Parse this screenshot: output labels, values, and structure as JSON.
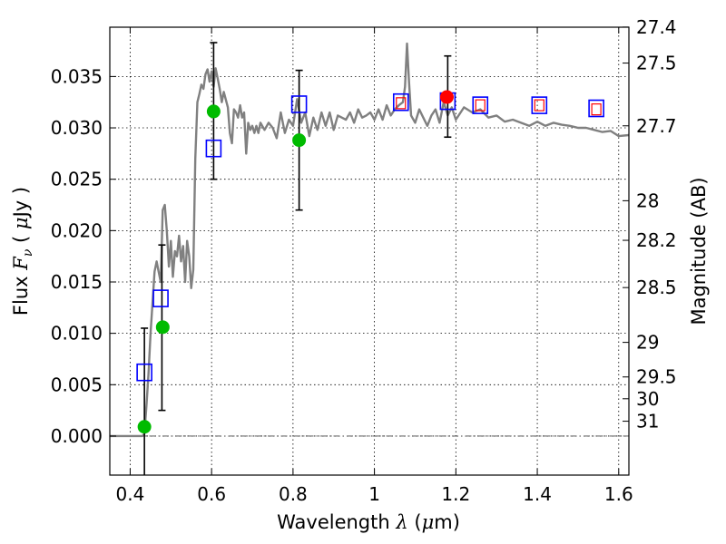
{
  "chart_data": {
    "type": "scatter",
    "xlabel": "Wavelength",
    "xlabel_symbol": "λ",
    "xlabel_unit_open": "(",
    "xlabel_unit_mu": "μ",
    "xlabel_unit_rest": "m)",
    "ylabel": "Flux",
    "ylabel_symbol": "F",
    "ylabel_sub": "ν",
    "ylabel_unit_open": "( ",
    "ylabel_unit_mu": "μ",
    "ylabel_unit_rest": "Jy )",
    "y2label": "Magnitude (AB)",
    "xlim": [
      0.35,
      1.625
    ],
    "ylim": [
      -0.0038,
      0.0398
    ],
    "grid": true,
    "x_ticks": [
      0.4,
      0.6,
      0.8,
      1.0,
      1.2,
      1.4,
      1.6
    ],
    "x_tick_labels": [
      "0.4",
      "0.6",
      "0.8",
      "1",
      "1.2",
      "1.4",
      "1.6"
    ],
    "y_ticks": [
      0.0,
      0.005,
      0.01,
      0.015,
      0.02,
      0.025,
      0.03,
      0.035
    ],
    "y_tick_labels": [
      "0.000",
      "0.005",
      "0.010",
      "0.015",
      "0.020",
      "0.025",
      "0.030",
      "0.035"
    ],
    "mag_ticks": [
      27.4,
      27.5,
      27.7,
      28,
      28.2,
      28.5,
      29,
      29.5,
      30,
      31
    ],
    "mag_tick_labels": [
      "27.4",
      "27.5",
      "27.7",
      "28",
      "28.2",
      "28.5",
      "29",
      "29.5",
      "30",
      "31"
    ],
    "zero_line_y": 0.0,
    "series": [
      {
        "name": "model spectrum",
        "kind": "line",
        "color": "#808080",
        "x": [
          0.35,
          0.43,
          0.435,
          0.44,
          0.445,
          0.45,
          0.455,
          0.46,
          0.465,
          0.47,
          0.475,
          0.48,
          0.485,
          0.49,
          0.495,
          0.5,
          0.505,
          0.51,
          0.515,
          0.52,
          0.525,
          0.53,
          0.535,
          0.54,
          0.545,
          0.55,
          0.555,
          0.56,
          0.565,
          0.57,
          0.575,
          0.58,
          0.585,
          0.59,
          0.595,
          0.6,
          0.605,
          0.61,
          0.615,
          0.62,
          0.625,
          0.63,
          0.64,
          0.645,
          0.65,
          0.655,
          0.66,
          0.665,
          0.67,
          0.675,
          0.68,
          0.685,
          0.69,
          0.695,
          0.7,
          0.705,
          0.71,
          0.715,
          0.72,
          0.73,
          0.74,
          0.75,
          0.76,
          0.77,
          0.78,
          0.79,
          0.8,
          0.81,
          0.82,
          0.83,
          0.84,
          0.85,
          0.86,
          0.87,
          0.88,
          0.89,
          0.9,
          0.91,
          0.92,
          0.93,
          0.94,
          0.95,
          0.96,
          0.97,
          0.98,
          0.99,
          1.0,
          1.01,
          1.02,
          1.03,
          1.04,
          1.05,
          1.06,
          1.07,
          1.075,
          1.08,
          1.085,
          1.09,
          1.1,
          1.11,
          1.12,
          1.13,
          1.14,
          1.15,
          1.16,
          1.17,
          1.18,
          1.19,
          1.2,
          1.22,
          1.24,
          1.26,
          1.28,
          1.3,
          1.32,
          1.34,
          1.36,
          1.38,
          1.4,
          1.42,
          1.44,
          1.46,
          1.48,
          1.5,
          1.52,
          1.54,
          1.56,
          1.58,
          1.6,
          1.625
        ],
        "y": [
          0.0,
          0.0,
          0.0002,
          0.003,
          0.006,
          0.01,
          0.013,
          0.016,
          0.017,
          0.016,
          0.015,
          0.022,
          0.0225,
          0.02,
          0.0165,
          0.019,
          0.0155,
          0.018,
          0.0175,
          0.0195,
          0.017,
          0.0185,
          0.015,
          0.019,
          0.0175,
          0.0144,
          0.0162,
          0.027,
          0.0325,
          0.0333,
          0.0342,
          0.0338,
          0.0352,
          0.0357,
          0.0345,
          0.0355,
          0.034,
          0.0358,
          0.0348,
          0.0338,
          0.0325,
          0.0335,
          0.032,
          0.0295,
          0.0285,
          0.0318,
          0.0315,
          0.031,
          0.0322,
          0.031,
          0.0315,
          0.0275,
          0.0305,
          0.0298,
          0.0302,
          0.0295,
          0.0302,
          0.0295,
          0.0305,
          0.0298,
          0.0305,
          0.03,
          0.029,
          0.0315,
          0.0295,
          0.0308,
          0.0302,
          0.0328,
          0.0305,
          0.0315,
          0.0292,
          0.031,
          0.0298,
          0.0315,
          0.0302,
          0.0315,
          0.0298,
          0.0312,
          0.031,
          0.0308,
          0.0315,
          0.0305,
          0.0318,
          0.031,
          0.0312,
          0.0315,
          0.0308,
          0.0318,
          0.0308,
          0.0322,
          0.0312,
          0.0318,
          0.0322,
          0.0325,
          0.034,
          0.0382,
          0.0345,
          0.0312,
          0.0305,
          0.0318,
          0.031,
          0.0302,
          0.0312,
          0.0318,
          0.0305,
          0.0325,
          0.0312,
          0.032,
          0.0308,
          0.032,
          0.0315,
          0.0318,
          0.031,
          0.0312,
          0.0306,
          0.0308,
          0.0305,
          0.0302,
          0.0306,
          0.0302,
          0.0305,
          0.0303,
          0.0302,
          0.03,
          0.03,
          0.0298,
          0.0296,
          0.0297,
          0.0292,
          0.0293
        ]
      },
      {
        "name": "measured flux",
        "kind": "square",
        "color": "#0000ff",
        "x": [
          0.435,
          0.475,
          0.605,
          0.815,
          1.065,
          1.18,
          1.26,
          1.405,
          1.545
        ],
        "y": [
          0.0062,
          0.0134,
          0.028,
          0.0323,
          0.0325,
          0.0326,
          0.0322,
          0.0322,
          0.0319
        ]
      },
      {
        "name": "model band flux",
        "kind": "small-square",
        "color": "#ff0000",
        "x": [
          1.065,
          1.26,
          1.405,
          1.545
        ],
        "y": [
          0.0324,
          0.0322,
          0.0322,
          0.0318
        ]
      },
      {
        "name": "green points",
        "kind": "circle",
        "color": "#00bb00",
        "x": [
          0.435,
          0.48,
          0.605,
          0.815
        ],
        "y": [
          0.0009,
          0.0106,
          0.0316,
          0.0288
        ]
      },
      {
        "name": "red point",
        "kind": "circle",
        "color": "#ff0000",
        "x": [
          1.178
        ],
        "y": [
          0.033
        ]
      },
      {
        "name": "error bars",
        "kind": "errorbar",
        "color": "#000000",
        "x": [
          0.435,
          0.478,
          0.605,
          0.815,
          1.18
        ],
        "ylow": [
          -0.0041,
          0.0025,
          0.025,
          0.022,
          0.0291
        ],
        "yhigh": [
          0.0105,
          0.0186,
          0.0383,
          0.0356,
          0.037
        ]
      }
    ]
  }
}
